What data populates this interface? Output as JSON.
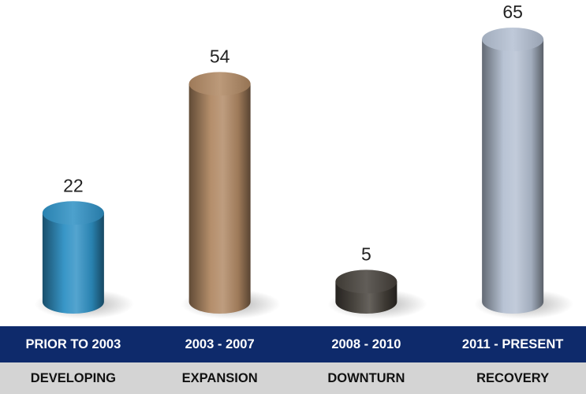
{
  "chart_data": {
    "type": "bar",
    "categories": [
      "PRIOR TO 2003",
      "2003 - 2007",
      "2008 - 2010",
      "2011 - PRESENT"
    ],
    "phases": [
      "DEVELOPING",
      "EXPANSION",
      "DOWNTURN",
      "RECOVERY"
    ],
    "values": [
      22,
      54,
      5,
      65
    ],
    "data_labels": [
      "22",
      "54",
      "5",
      "65"
    ],
    "title": "",
    "xlabel": "",
    "ylabel": "",
    "ylim": [
      0,
      65
    ],
    "grid": false,
    "legend": "none",
    "bar_style": "3d-cylinder",
    "colors": [
      "#2e90c4",
      "#b08863",
      "#45403a",
      "#b4c0d2"
    ],
    "header_color": "#0e2a6b",
    "phase_row_color": "#d4d4d4"
  }
}
